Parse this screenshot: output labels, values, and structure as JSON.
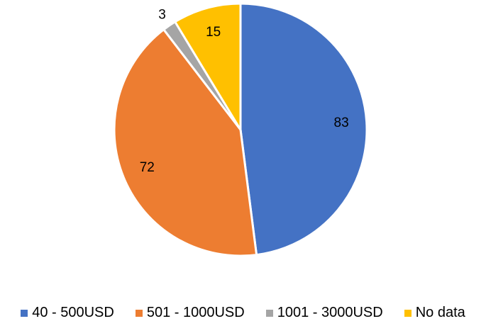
{
  "chart_data": {
    "type": "pie",
    "categories": [
      "40 - 500USD",
      "501 - 1000USD",
      "1001 - 3000USD",
      "No data"
    ],
    "values": [
      83,
      72,
      3,
      15
    ],
    "colors": [
      "#4472c4",
      "#ed7d31",
      "#a5a5a5",
      "#ffc000"
    ],
    "legend": "bottom"
  }
}
